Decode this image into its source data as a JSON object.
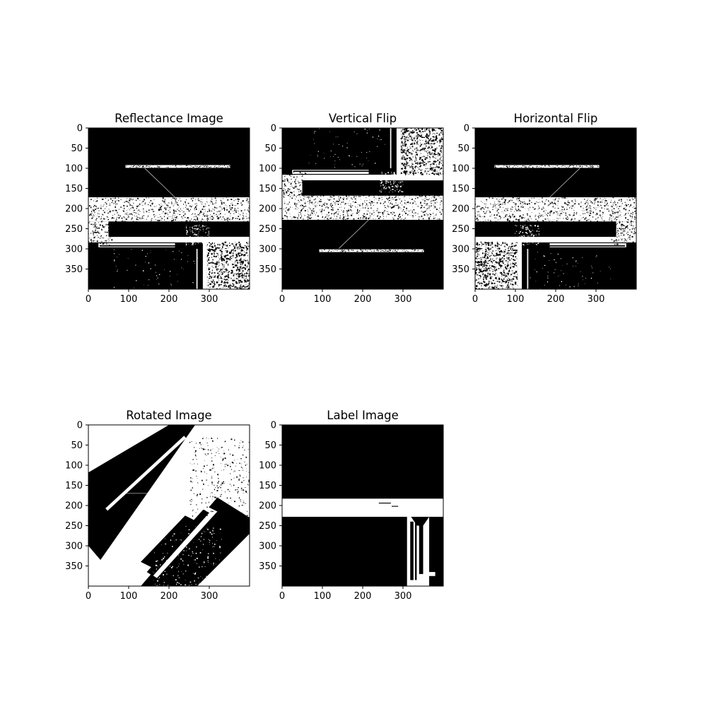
{
  "chart_data": [
    {
      "type": "heatmap",
      "title": "Reflectance Image",
      "colormap": "binary",
      "image_size": [
        400,
        400
      ],
      "xticks": [
        0,
        100,
        200,
        300
      ],
      "yticks": [
        0,
        50,
        100,
        150,
        200,
        250,
        300,
        350
      ],
      "xlim": [
        0,
        400
      ],
      "ylim": [
        400,
        0
      ]
    },
    {
      "type": "heatmap",
      "title": "Vertical Flip",
      "colormap": "binary",
      "image_size": [
        400,
        400
      ],
      "xticks": [
        0,
        100,
        200,
        300
      ],
      "yticks": [
        0,
        50,
        100,
        150,
        200,
        250,
        300,
        350
      ],
      "xlim": [
        0,
        400
      ],
      "ylim": [
        400,
        0
      ]
    },
    {
      "type": "heatmap",
      "title": "Horizontal Flip",
      "colormap": "binary",
      "image_size": [
        400,
        400
      ],
      "xticks": [
        0,
        100,
        200,
        300
      ],
      "yticks": [
        0,
        50,
        100,
        150,
        200,
        250,
        300,
        350
      ],
      "xlim": [
        0,
        400
      ],
      "ylim": [
        400,
        0
      ]
    },
    {
      "type": "heatmap",
      "title": "Rotated Image",
      "colormap": "binary",
      "image_size": [
        400,
        400
      ],
      "xticks": [
        0,
        100,
        200,
        300
      ],
      "yticks": [
        0,
        50,
        100,
        150,
        200,
        250,
        300,
        350
      ],
      "xlim": [
        0,
        400
      ],
      "ylim": [
        400,
        0
      ]
    },
    {
      "type": "heatmap",
      "title": "Label Image",
      "colormap": "binary",
      "image_size": [
        400,
        400
      ],
      "xticks": [
        0,
        100,
        200,
        300
      ],
      "yticks": [
        0,
        50,
        100,
        150,
        200,
        250,
        300,
        350
      ],
      "xlim": [
        0,
        400
      ],
      "ylim": [
        400,
        0
      ]
    }
  ]
}
